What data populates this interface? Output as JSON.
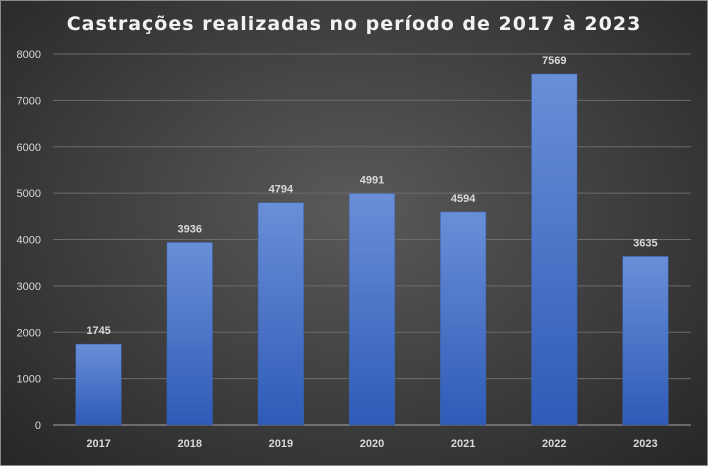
{
  "chart_data": {
    "type": "bar",
    "title": "Castrações realizadas no período de 2017 à 2023",
    "xlabel": "",
    "ylabel": "",
    "categories": [
      "2017",
      "2018",
      "2019",
      "2020",
      "2021",
      "2022",
      "2023"
    ],
    "values": [
      1745,
      3936,
      4794,
      4991,
      4594,
      7569,
      3635
    ],
    "ylim": [
      0,
      8000
    ],
    "yticks": [
      0,
      1000,
      2000,
      3000,
      4000,
      5000,
      6000,
      7000,
      8000
    ],
    "grid": true,
    "legend": "none",
    "bar_color": "#4472c4"
  }
}
